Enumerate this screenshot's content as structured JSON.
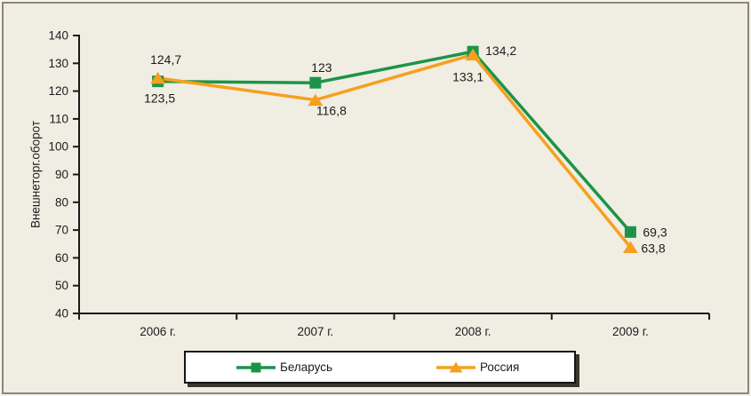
{
  "chart_data": {
    "type": "line",
    "categories": [
      "2006 г.",
      "2007 г.",
      "2008 г.",
      "2009 г."
    ],
    "series": [
      {
        "name": "Беларусь",
        "color": "#1c9447",
        "marker": "square",
        "values": [
          123.5,
          123,
          134.2,
          69.3
        ],
        "labels": [
          {
            "text": "123,5",
            "dx": 2,
            "dy": 24,
            "anchor": "middle"
          },
          {
            "text": "123",
            "dx": 7,
            "dy": -12,
            "anchor": "middle"
          },
          {
            "text": "134,2",
            "dx": 14,
            "dy": 4,
            "anchor": "start"
          },
          {
            "text": "69,3",
            "dx": 14,
            "dy": 5,
            "anchor": "start"
          }
        ]
      },
      {
        "name": "Россия",
        "color": "#f6a01e",
        "marker": "triangle",
        "values": [
          124.7,
          116.8,
          133.1,
          63.8
        ],
        "labels": [
          {
            "text": "124,7",
            "dx": 9,
            "dy": -16,
            "anchor": "middle"
          },
          {
            "text": "116,8",
            "dx": 18,
            "dy": 17,
            "anchor": "middle"
          },
          {
            "text": "133,1",
            "dx": 12,
            "dy": 30,
            "anchor": "end"
          },
          {
            "text": "63,8",
            "dx": 12,
            "dy": 6,
            "anchor": "start"
          }
        ]
      }
    ],
    "title": "",
    "xlabel": "",
    "ylabel": "Внешнеторг.оборот",
    "ylim": [
      40,
      140
    ],
    "ytick_step": 10,
    "yticks": [
      "40",
      "50",
      "60",
      "70",
      "80",
      "90",
      "100",
      "110",
      "120",
      "130",
      "140"
    ],
    "grid": false,
    "legend_position": "bottom-center"
  },
  "colors": {
    "background": "#f0ede3",
    "outer_background": "#f6f4ec",
    "frame_border": "#8d8779",
    "axis": "#1a1a1a",
    "text": "#1c1c1c",
    "legend_background": "#ffffff",
    "legend_border": "#151515",
    "legend_shadow": "#3a372f"
  }
}
